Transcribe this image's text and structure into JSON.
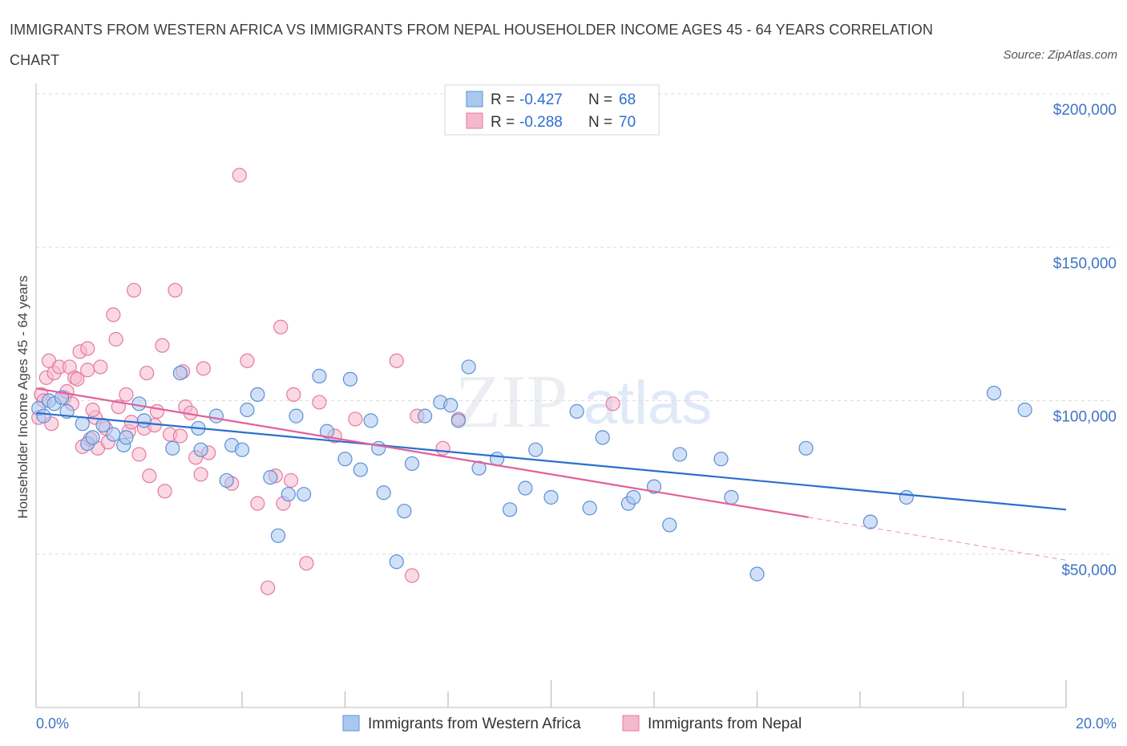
{
  "title": "IMMIGRANTS FROM WESTERN AFRICA VS IMMIGRANTS FROM NEPAL HOUSEHOLDER INCOME AGES 45 - 64 YEARS CORRELATION CHART",
  "source": "Source: ZipAtlas.com",
  "watermark": {
    "zip": "ZIP",
    "atlas": "atlas"
  },
  "legend_stats": [
    {
      "r_label": "R = ",
      "r_value": "-0.427",
      "n_label": "N = ",
      "n_value": "68"
    },
    {
      "r_label": "R = ",
      "r_value": "-0.288",
      "n_label": "N = ",
      "n_value": "70"
    }
  ],
  "bottom_legend": [
    "Immigrants from Western Africa",
    "Immigrants from Nepal"
  ],
  "colors": {
    "blue_fill": "#a9c8f0",
    "blue_stroke": "#5b8fd6",
    "blue_line": "#2b6fcf",
    "pink_fill": "#f6b8cd",
    "pink_stroke": "#e47aa0",
    "pink_line": "#e2609a",
    "axis_text": "#3d74c5",
    "grid": "#dddddd"
  },
  "chart_data": {
    "type": "scatter",
    "title": "IMMIGRANTS FROM WESTERN AFRICA VS IMMIGRANTS FROM NEPAL HOUSEHOLDER INCOME AGES 45 - 64 YEARS CORRELATION CHART",
    "xlabel": "",
    "ylabel": "Householder Income Ages 45 - 64 years",
    "xlim": [
      0,
      20
    ],
    "ylim": [
      0,
      200000
    ],
    "x_tick_labels": [
      "0.0%",
      "20.0%"
    ],
    "y_ticks": [
      50000,
      100000,
      150000,
      200000
    ],
    "y_tick_labels": [
      "$50,000",
      "$100,000",
      "$150,000",
      "$200,000"
    ],
    "grid": true,
    "legend_position": "top-center",
    "series": [
      {
        "name": "Immigrants from Western Africa",
        "r": -0.427,
        "n": 68,
        "trend": {
          "x": [
            0,
            20
          ],
          "y": [
            96000,
            64500
          ]
        },
        "points": [
          [
            0.05,
            97500
          ],
          [
            0.15,
            95000
          ],
          [
            0.25,
            100000
          ],
          [
            0.35,
            99000
          ],
          [
            0.5,
            101000
          ],
          [
            0.6,
            96500
          ],
          [
            0.9,
            92500
          ],
          [
            1.0,
            86000
          ],
          [
            1.1,
            88000
          ],
          [
            1.3,
            92000
          ],
          [
            1.5,
            89000
          ],
          [
            1.7,
            85500
          ],
          [
            1.75,
            88000
          ],
          [
            2.0,
            99000
          ],
          [
            2.1,
            93500
          ],
          [
            2.65,
            84500
          ],
          [
            2.8,
            109000
          ],
          [
            3.15,
            91000
          ],
          [
            3.2,
            84000
          ],
          [
            3.5,
            95000
          ],
          [
            3.7,
            74000
          ],
          [
            3.8,
            85500
          ],
          [
            4.0,
            84000
          ],
          [
            4.1,
            97000
          ],
          [
            4.3,
            102000
          ],
          [
            4.55,
            75000
          ],
          [
            4.7,
            56000
          ],
          [
            4.9,
            69500
          ],
          [
            5.05,
            95000
          ],
          [
            5.2,
            69500
          ],
          [
            5.5,
            108000
          ],
          [
            5.65,
            90000
          ],
          [
            6.0,
            81000
          ],
          [
            6.1,
            107000
          ],
          [
            6.3,
            77500
          ],
          [
            6.5,
            93500
          ],
          [
            6.65,
            84500
          ],
          [
            6.75,
            70000
          ],
          [
            7.0,
            47500
          ],
          [
            7.15,
            64000
          ],
          [
            7.3,
            79500
          ],
          [
            7.55,
            95000
          ],
          [
            7.85,
            99500
          ],
          [
            8.05,
            98500
          ],
          [
            8.2,
            93500
          ],
          [
            8.4,
            111000
          ],
          [
            8.6,
            78000
          ],
          [
            8.95,
            81000
          ],
          [
            9.2,
            64500
          ],
          [
            9.5,
            71500
          ],
          [
            9.7,
            84000
          ],
          [
            10.0,
            68500
          ],
          [
            10.5,
            96500
          ],
          [
            10.75,
            65000
          ],
          [
            11.0,
            88000
          ],
          [
            11.5,
            66500
          ],
          [
            11.6,
            68500
          ],
          [
            12.0,
            72000
          ],
          [
            12.3,
            59500
          ],
          [
            12.5,
            82500
          ],
          [
            13.3,
            81000
          ],
          [
            13.5,
            68500
          ],
          [
            14.0,
            43500
          ],
          [
            14.95,
            84500
          ],
          [
            16.2,
            60500
          ],
          [
            16.9,
            68500
          ],
          [
            18.6,
            102500
          ],
          [
            19.2,
            97000
          ]
        ]
      },
      {
        "name": "Immigrants from Nepal",
        "r": -0.288,
        "n": 70,
        "trend": {
          "x": [
            0,
            15
          ],
          "y": [
            104000,
            62000
          ]
        },
        "trend_dashed": {
          "x": [
            15,
            20
          ],
          "y": [
            62000,
            48000
          ]
        },
        "points": [
          [
            0.05,
            94500
          ],
          [
            0.1,
            102000
          ],
          [
            0.15,
            100000
          ],
          [
            0.2,
            107500
          ],
          [
            0.25,
            113000
          ],
          [
            0.35,
            109000
          ],
          [
            0.45,
            111000
          ],
          [
            0.55,
            101000
          ],
          [
            0.6,
            103000
          ],
          [
            0.65,
            111000
          ],
          [
            0.75,
            107500
          ],
          [
            0.8,
            107000
          ],
          [
            0.85,
            116000
          ],
          [
            0.9,
            85000
          ],
          [
            1.0,
            117000
          ],
          [
            1.0,
            110000
          ],
          [
            1.05,
            87500
          ],
          [
            1.15,
            94500
          ],
          [
            1.2,
            84500
          ],
          [
            1.25,
            111000
          ],
          [
            1.35,
            91000
          ],
          [
            1.5,
            128000
          ],
          [
            1.55,
            120000
          ],
          [
            1.6,
            98000
          ],
          [
            1.75,
            102000
          ],
          [
            1.8,
            90000
          ],
          [
            1.9,
            136000
          ],
          [
            2.0,
            82500
          ],
          [
            2.1,
            91000
          ],
          [
            2.15,
            109000
          ],
          [
            2.2,
            75500
          ],
          [
            2.35,
            96500
          ],
          [
            2.45,
            118000
          ],
          [
            2.5,
            70500
          ],
          [
            2.6,
            89000
          ],
          [
            2.7,
            136000
          ],
          [
            2.8,
            88500
          ],
          [
            2.85,
            109500
          ],
          [
            2.9,
            98000
          ],
          [
            3.0,
            96000
          ],
          [
            3.1,
            81500
          ],
          [
            3.2,
            76000
          ],
          [
            3.25,
            110500
          ],
          [
            3.35,
            83000
          ],
          [
            3.8,
            73000
          ],
          [
            3.95,
            173500
          ],
          [
            4.1,
            113000
          ],
          [
            4.3,
            66500
          ],
          [
            4.5,
            39000
          ],
          [
            4.65,
            75500
          ],
          [
            4.75,
            124000
          ],
          [
            4.8,
            66500
          ],
          [
            4.95,
            74000
          ],
          [
            5.0,
            102000
          ],
          [
            5.25,
            47000
          ],
          [
            5.5,
            99500
          ],
          [
            5.8,
            88500
          ],
          [
            6.2,
            94000
          ],
          [
            7.0,
            113000
          ],
          [
            7.3,
            43000
          ],
          [
            7.4,
            95000
          ],
          [
            7.9,
            84500
          ],
          [
            8.2,
            94000
          ],
          [
            11.2,
            99000
          ],
          [
            0.3,
            92500
          ],
          [
            1.4,
            86500
          ],
          [
            2.3,
            92000
          ],
          [
            0.7,
            99000
          ],
          [
            1.1,
            97000
          ],
          [
            1.85,
            93000
          ]
        ]
      }
    ]
  }
}
